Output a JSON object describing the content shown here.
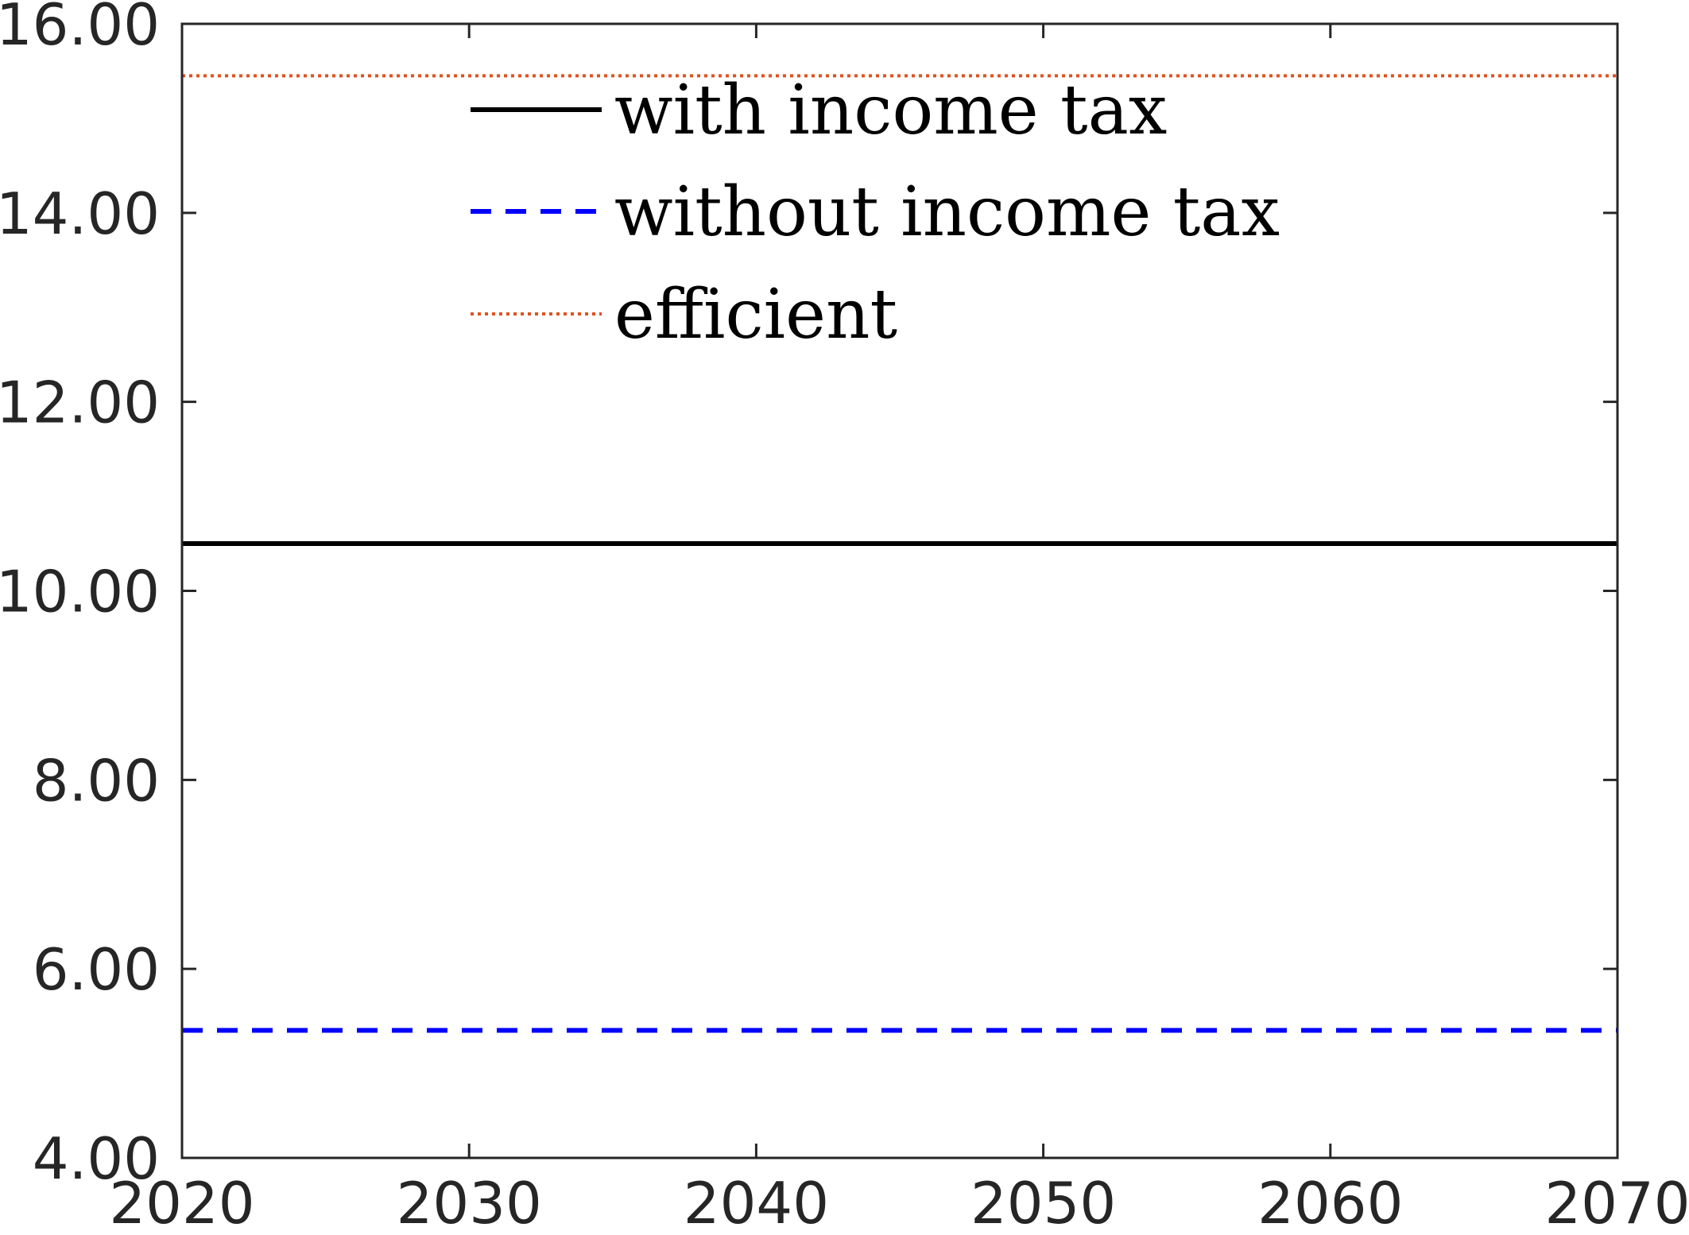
{
  "chart_data": {
    "type": "line",
    "title": "",
    "xlabel": "",
    "ylabel": "",
    "xlim": [
      2020,
      2070
    ],
    "ylim": [
      4,
      16
    ],
    "x_ticks": [
      2020,
      2030,
      2040,
      2050,
      2060,
      2070
    ],
    "x_tick_labels": [
      "2020",
      "2030",
      "2040",
      "2050",
      "2060",
      "2070"
    ],
    "y_ticks": [
      4,
      6,
      8,
      10,
      12,
      14,
      16
    ],
    "y_tick_labels": [
      "4.00",
      "6.00",
      "8.00",
      "10.00",
      "12.00",
      "14.00",
      "16.00"
    ],
    "grid": false,
    "legend_position": "top-center",
    "series": [
      {
        "name": "with income tax",
        "color": "#000000",
        "style": "solid",
        "x": [
          2020,
          2070
        ],
        "y": [
          10.5,
          10.5
        ]
      },
      {
        "name": "without income tax",
        "color": "#0000ff",
        "style": "dashed",
        "x": [
          2020,
          2070
        ],
        "y": [
          5.35,
          5.35
        ]
      },
      {
        "name": "efficient",
        "color": "#e0521f",
        "style": "dotted",
        "x": [
          2020,
          2070
        ],
        "y": [
          15.45,
          15.45
        ]
      }
    ]
  }
}
